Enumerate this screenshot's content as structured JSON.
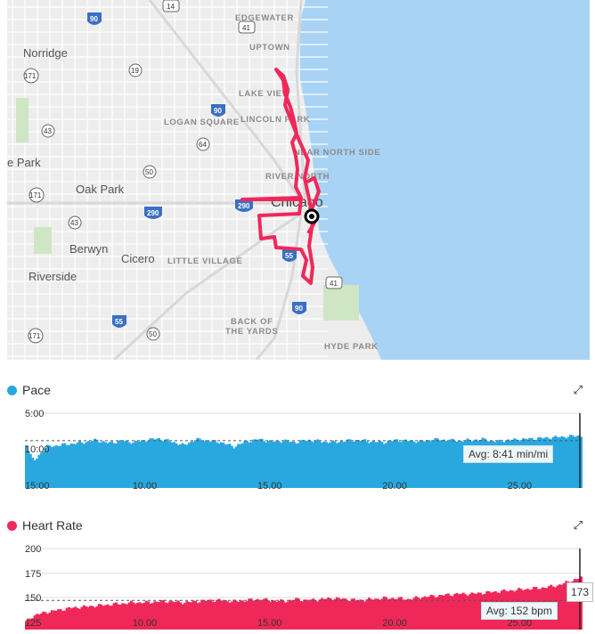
{
  "map": {
    "labels": {
      "edgewater": "EDGEWATER",
      "uptown": "UPTOWN",
      "lake_view": "LAKE VIEW",
      "lincoln_park": "LINCOLN PARK",
      "logan_square": "LOGAN SQUARE",
      "near_north_side": "NEAR NORTH SIDE",
      "river_north": "RIVER NORTH",
      "chicago": "Chicago",
      "norridge": "Norridge",
      "oak_park": "Oak Park",
      "berwyn": "Berwyn",
      "cicero": "Cicero",
      "little_village": "LITTLE VILLAGE",
      "riverside": "Riverside",
      "back_of_the_yards": "BACK OF THE YARDS",
      "hyde_park": "HYDE PARK",
      "park_partial": "e Park"
    },
    "shields": [
      "90",
      "14",
      "41",
      "19",
      "171",
      "43",
      "64",
      "50",
      "290",
      "55",
      "41",
      "90",
      "55",
      "171",
      "50",
      "171"
    ],
    "route_color": "#f0285a"
  },
  "pace": {
    "title": "Pace",
    "color": "#29a8e0",
    "y_ticks": [
      "5:00",
      "10:00",
      "15:00"
    ],
    "x_ticks": [
      "10.00",
      "15.00",
      "20.00",
      "25.00"
    ],
    "avg_label": "Avg: 8:41 min/mi"
  },
  "heart_rate": {
    "title": "Heart Rate",
    "color": "#f0285a",
    "y_ticks": [
      "200",
      "175",
      "150",
      "125"
    ],
    "x_ticks": [
      "10.00",
      "15.00",
      "20.00",
      "25.00"
    ],
    "avg_label": "Avg: 152 bpm",
    "hover_value": "173"
  },
  "chart_data": [
    {
      "type": "area",
      "title": "Pace",
      "xlabel": "",
      "ylabel": "",
      "xlim": [
        5.2,
        27.4
      ],
      "ylim": [
        15,
        5
      ],
      "avg": 8.68,
      "x_ticks": [
        10,
        15,
        20,
        25
      ],
      "y_ticks": [
        5,
        10,
        15
      ],
      "series": [
        {
          "x": [
            5.2,
            5.5,
            6,
            6.5,
            7,
            7.5,
            8,
            8.5,
            9,
            9.5,
            10,
            10.5,
            11,
            11.5,
            12,
            12.5,
            13,
            13.5,
            14,
            14.5,
            15,
            15.5,
            16,
            16.5,
            17,
            17.5,
            18,
            18.5,
            19,
            19.5,
            20,
            20.5,
            21,
            21.5,
            22,
            22.5,
            23,
            23.5,
            24,
            24.5,
            25,
            25.5,
            26,
            26.5,
            27,
            27.4
          ],
          "y": [
            9.2,
            11.5,
            9.5,
            9.3,
            9.1,
            8.9,
            8.6,
            9.0,
            8.7,
            8.9,
            8.6,
            8.4,
            8.8,
            9.3,
            8.5,
            8.7,
            8.9,
            9.5,
            8.8,
            8.5,
            8.8,
            8.7,
            8.9,
            8.6,
            8.8,
            8.9,
            8.7,
            8.6,
            8.8,
            8.9,
            8.6,
            8.7,
            8.8,
            8.5,
            8.6,
            8.7,
            8.6,
            8.5,
            8.8,
            8.6,
            8.5,
            8.4,
            8.3,
            8.2,
            8.1,
            8.0
          ]
        }
      ]
    },
    {
      "type": "area",
      "title": "Heart Rate",
      "xlabel": "",
      "ylabel": "",
      "xlim": [
        5.2,
        27.4
      ],
      "ylim": [
        125,
        200
      ],
      "avg": 152,
      "x_ticks": [
        10,
        15,
        20,
        25
      ],
      "y_ticks": [
        125,
        150,
        175,
        200
      ],
      "series": [
        {
          "x": [
            5.2,
            5.5,
            6,
            6.5,
            7,
            7.5,
            8,
            8.5,
            9,
            9.5,
            10,
            10.5,
            11,
            11.5,
            12,
            12.5,
            13,
            13.5,
            14,
            14.5,
            15,
            15.5,
            16,
            16.5,
            17,
            17.5,
            18,
            18.5,
            19,
            19.5,
            20,
            20.5,
            21,
            21.5,
            22,
            22.5,
            23,
            23.5,
            24,
            24.5,
            25,
            25.5,
            26,
            26.5,
            27,
            27.4
          ],
          "y": [
            132,
            138,
            141,
            143,
            145,
            146,
            147,
            148,
            149,
            150,
            150,
            151,
            151,
            150,
            151,
            152,
            152,
            151,
            152,
            153,
            152,
            151,
            153,
            152,
            153,
            154,
            153,
            152,
            153,
            154,
            154,
            153,
            155,
            156,
            157,
            158,
            158,
            159,
            160,
            161,
            162,
            163,
            164,
            166,
            170,
            173
          ]
        }
      ]
    }
  ]
}
